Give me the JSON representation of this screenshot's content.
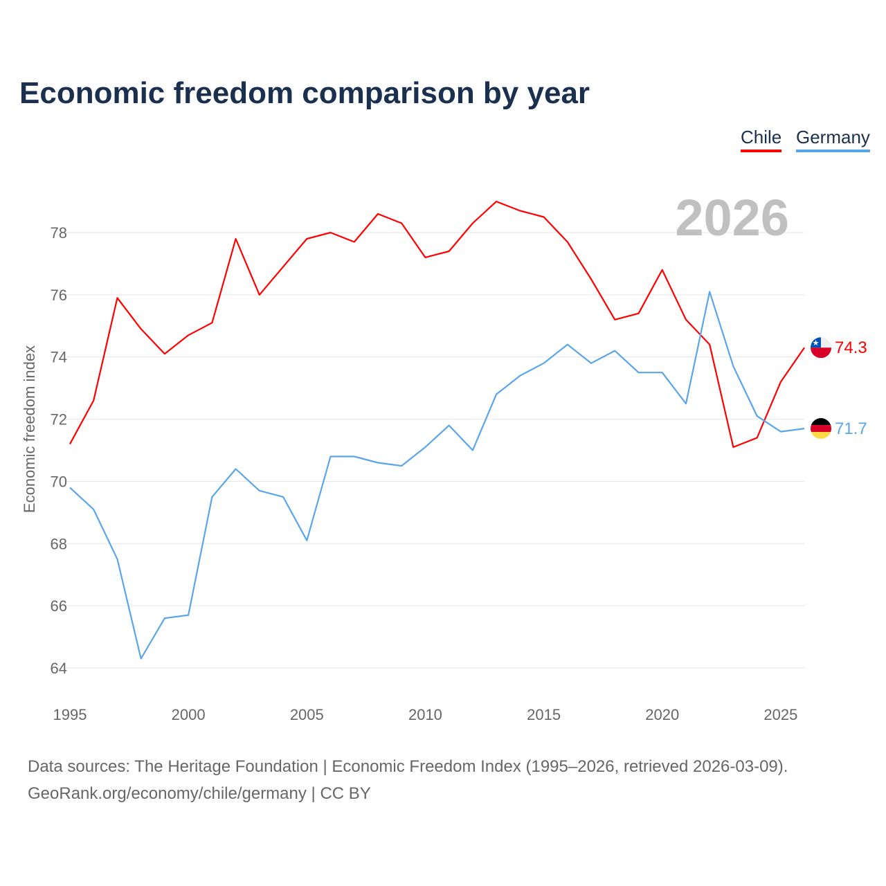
{
  "chart_data": {
    "type": "line",
    "title": "Economic freedom comparison by year",
    "xlabel": "",
    "ylabel": "Economic freedom index",
    "watermark_year": "2026",
    "ylim": [
      63,
      79.5
    ],
    "xlim": [
      1995,
      2026
    ],
    "yticks": [
      "64",
      "66",
      "68",
      "70",
      "72",
      "74",
      "76",
      "78"
    ],
    "xticks": [
      "1995",
      "2000",
      "2005",
      "2010",
      "2015",
      "2020",
      "2025"
    ],
    "legend_position": "top-right",
    "x": [
      1995,
      1996,
      1997,
      1998,
      1999,
      2000,
      2001,
      2002,
      2003,
      2004,
      2005,
      2006,
      2007,
      2008,
      2009,
      2010,
      2011,
      2012,
      2013,
      2014,
      2015,
      2016,
      2017,
      2018,
      2019,
      2020,
      2021,
      2022,
      2023,
      2024,
      2025,
      2026
    ],
    "series": [
      {
        "name": "Chile",
        "color": "#ff0000",
        "end_label": "74.3",
        "values": [
          71.2,
          72.6,
          75.9,
          74.9,
          74.1,
          74.7,
          75.1,
          77.8,
          76.0,
          76.9,
          77.8,
          78.0,
          77.7,
          78.6,
          78.3,
          77.2,
          77.4,
          78.3,
          79.0,
          78.7,
          78.5,
          77.7,
          76.5,
          75.2,
          75.4,
          76.8,
          75.2,
          74.4,
          71.1,
          71.4,
          73.2,
          74.3
        ]
      },
      {
        "name": "Germany",
        "color": "#5aa5ea",
        "end_label": "71.7",
        "values": [
          69.8,
          69.1,
          67.5,
          64.3,
          65.6,
          65.7,
          69.5,
          70.4,
          69.7,
          69.5,
          68.1,
          70.8,
          70.8,
          70.6,
          70.5,
          71.1,
          71.8,
          71.0,
          72.8,
          73.4,
          73.8,
          74.4,
          73.8,
          74.2,
          73.5,
          73.5,
          72.5,
          76.1,
          73.7,
          72.1,
          71.6,
          71.7
        ]
      }
    ]
  },
  "footer": {
    "line1": "Data sources: The Heritage Foundation | Economic Freedom Index (1995–2026, retrieved 2026-03-09).",
    "line2": "GeoRank.org/economy/chile/germany | CC BY"
  }
}
